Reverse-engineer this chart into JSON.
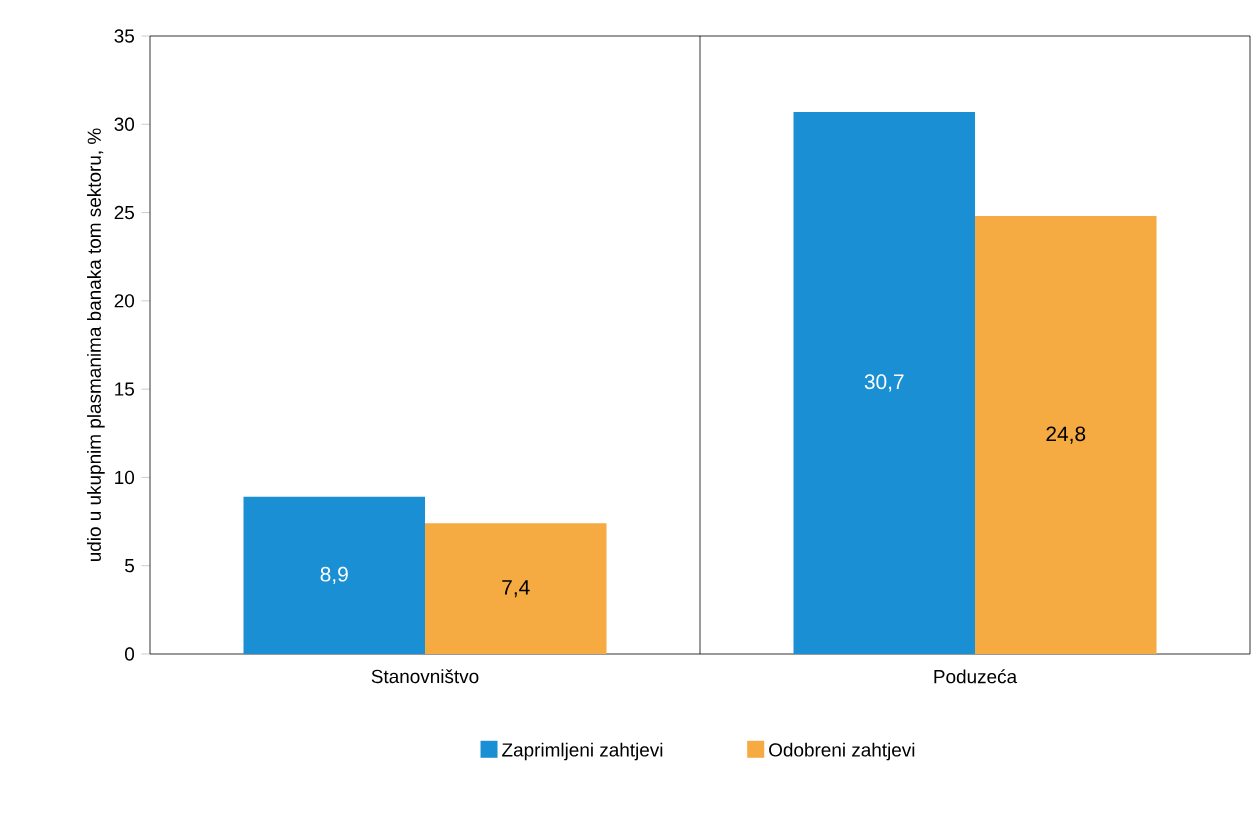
{
  "chart_data": {
    "type": "bar",
    "ylabel": "udio u ukupnim plasmanima banaka tom sektoru, %",
    "categories": [
      "Stanovništvo",
      "Poduzeća"
    ],
    "series": [
      {
        "name": "Zaprimljeni zahtjevi",
        "color": "#1a8fd3",
        "values": [
          8.9,
          30.7
        ],
        "value_labels": [
          "8,9",
          "30,7"
        ]
      },
      {
        "name": "Odobreni zahtjevi",
        "color": "#f5aa42",
        "values": [
          7.4,
          24.8
        ],
        "value_labels": [
          "7,4",
          "24,8"
        ]
      }
    ],
    "ylim": [
      0,
      35
    ],
    "yticks": [
      0,
      5,
      10,
      15,
      20,
      25,
      30,
      35
    ],
    "grid": false,
    "legend": "bottom"
  }
}
